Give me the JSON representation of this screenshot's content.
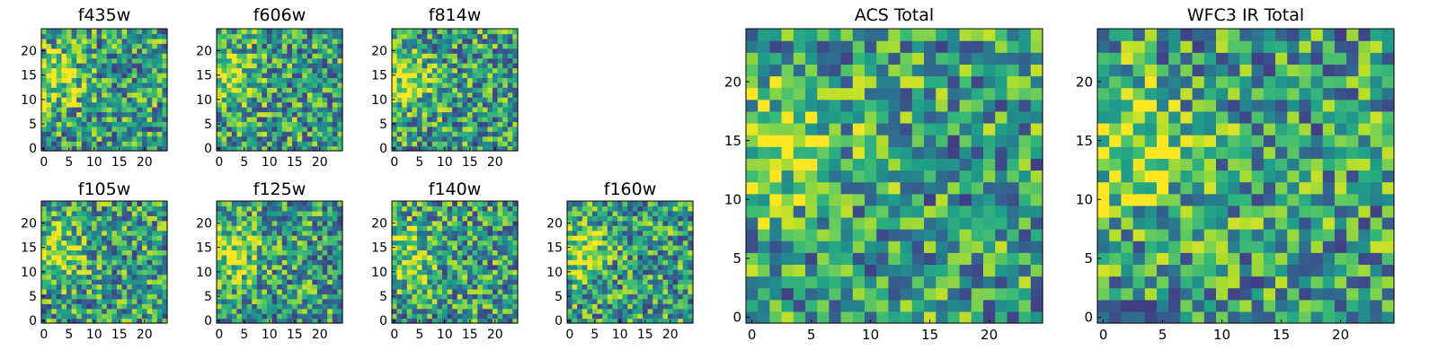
{
  "figure": {
    "colormap": "viridis"
  },
  "chart_data": [
    {
      "type": "heatmap",
      "title": "f435w",
      "size": 25,
      "xlim": [
        0,
        24
      ],
      "ylim": [
        0,
        24
      ],
      "xticks": [
        0,
        5,
        10,
        15,
        20
      ],
      "yticks": [
        0,
        5,
        10,
        15,
        20
      ],
      "pattern_seed": 11
    },
    {
      "type": "heatmap",
      "title": "f606w",
      "size": 25,
      "xlim": [
        0,
        24
      ],
      "ylim": [
        0,
        24
      ],
      "xticks": [
        0,
        5,
        10,
        15,
        20
      ],
      "yticks": [
        0,
        5,
        10,
        15,
        20
      ],
      "pattern_seed": 23
    },
    {
      "type": "heatmap",
      "title": "f814w",
      "size": 25,
      "xlim": [
        0,
        24
      ],
      "ylim": [
        0,
        24
      ],
      "xticks": [
        0,
        5,
        10,
        15,
        20
      ],
      "yticks": [
        0,
        5,
        10,
        15,
        20
      ],
      "pattern_seed": 37
    },
    {
      "type": "heatmap",
      "title": "f105w",
      "size": 25,
      "xlim": [
        0,
        24
      ],
      "ylim": [
        0,
        24
      ],
      "xticks": [
        0,
        5,
        10,
        15,
        20
      ],
      "yticks": [
        0,
        5,
        10,
        15,
        20
      ],
      "pattern_seed": 41
    },
    {
      "type": "heatmap",
      "title": "f125w",
      "size": 25,
      "xlim": [
        0,
        24
      ],
      "ylim": [
        0,
        24
      ],
      "xticks": [
        0,
        5,
        10,
        15,
        20
      ],
      "yticks": [
        0,
        5,
        10,
        15,
        20
      ],
      "pattern_seed": 53
    },
    {
      "type": "heatmap",
      "title": "f140w",
      "size": 25,
      "xlim": [
        0,
        24
      ],
      "ylim": [
        0,
        24
      ],
      "xticks": [
        0,
        5,
        10,
        15,
        20
      ],
      "yticks": [
        0,
        5,
        10,
        15,
        20
      ],
      "pattern_seed": 67
    },
    {
      "type": "heatmap",
      "title": "f160w",
      "size": 25,
      "xlim": [
        0,
        24
      ],
      "ylim": [
        0,
        24
      ],
      "xticks": [
        0,
        5,
        10,
        15,
        20
      ],
      "yticks": [
        0,
        5,
        10,
        15,
        20
      ],
      "pattern_seed": 71
    },
    {
      "type": "heatmap",
      "title": "ACS Total",
      "size": 25,
      "xlim": [
        0,
        24
      ],
      "ylim": [
        0,
        24
      ],
      "xticks": [
        0,
        5,
        10,
        15,
        20
      ],
      "yticks": [
        0,
        5,
        10,
        15,
        20
      ],
      "pattern_seed": 89
    },
    {
      "type": "heatmap",
      "title": "WFC3 IR Total",
      "size": 25,
      "xlim": [
        0,
        24
      ],
      "ylim": [
        0,
        24
      ],
      "xticks": [
        0,
        5,
        10,
        15,
        20
      ],
      "yticks": [
        0,
        5,
        10,
        15,
        20
      ],
      "pattern_seed": 97
    }
  ]
}
